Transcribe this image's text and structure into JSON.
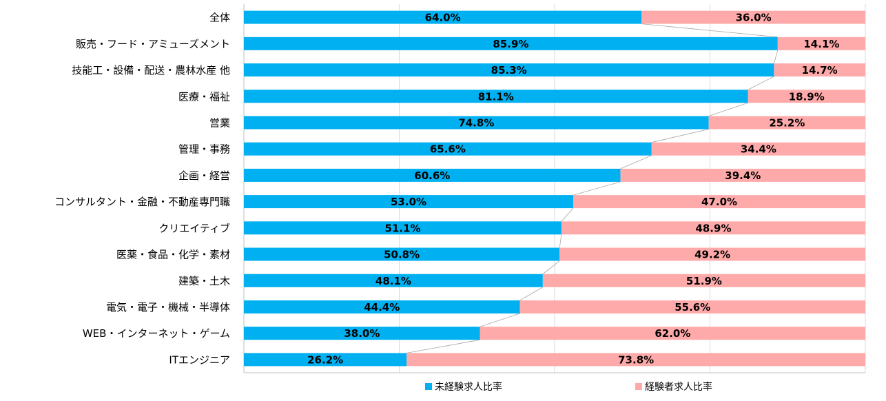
{
  "chart_data": {
    "type": "bar",
    "orientation": "horizontal",
    "stacked": "percent",
    "categories": [
      "全体",
      "販売・フード・アミューズメント",
      "技能工・設備・配送・農林水産 他",
      "医療・福祉",
      "営業",
      "管理・事務",
      "企画・経営",
      "コンサルタント・金融・不動産専門職",
      "クリエイティブ",
      "医薬・食品・化学・素材",
      "建築・土木",
      "電気・電子・機械・半導体",
      "WEB・インターネット・ゲーム",
      "ITエンジニア"
    ],
    "series": [
      {
        "name": "未経験求人比率",
        "color": "#00b0f0",
        "values": [
          64.0,
          85.9,
          85.3,
          81.1,
          74.8,
          65.6,
          60.6,
          53.0,
          51.1,
          50.8,
          48.1,
          44.4,
          38.0,
          26.2
        ],
        "labels": [
          "64.0%",
          "85.9%",
          "85.3%",
          "81.1%",
          "74.8%",
          "65.6%",
          "60.6%",
          "53.0%",
          "51.1%",
          "50.8%",
          "48.1%",
          "44.4%",
          "38.0%",
          "26.2%"
        ]
      },
      {
        "name": "経験者求人比率",
        "color": "#ffaaaa",
        "values": [
          36.0,
          14.1,
          14.7,
          18.9,
          25.2,
          34.4,
          39.4,
          47.0,
          48.9,
          49.2,
          51.9,
          55.6,
          62.0,
          73.8
        ],
        "labels": [
          "36.0%",
          "14.1%",
          "14.7%",
          "18.9%",
          "25.2%",
          "34.4%",
          "39.4%",
          "47.0%",
          "48.9%",
          "49.2%",
          "51.9%",
          "55.6%",
          "62.0%",
          "73.8%"
        ]
      }
    ],
    "xlim": [
      0,
      100
    ],
    "gridlines": [
      25,
      50,
      75
    ],
    "series_lines": true,
    "legend_position": "bottom",
    "grid_color": "#d9d9d9",
    "series_line_color": "#a6a6a6",
    "axis_color": "#bfbfbf"
  }
}
